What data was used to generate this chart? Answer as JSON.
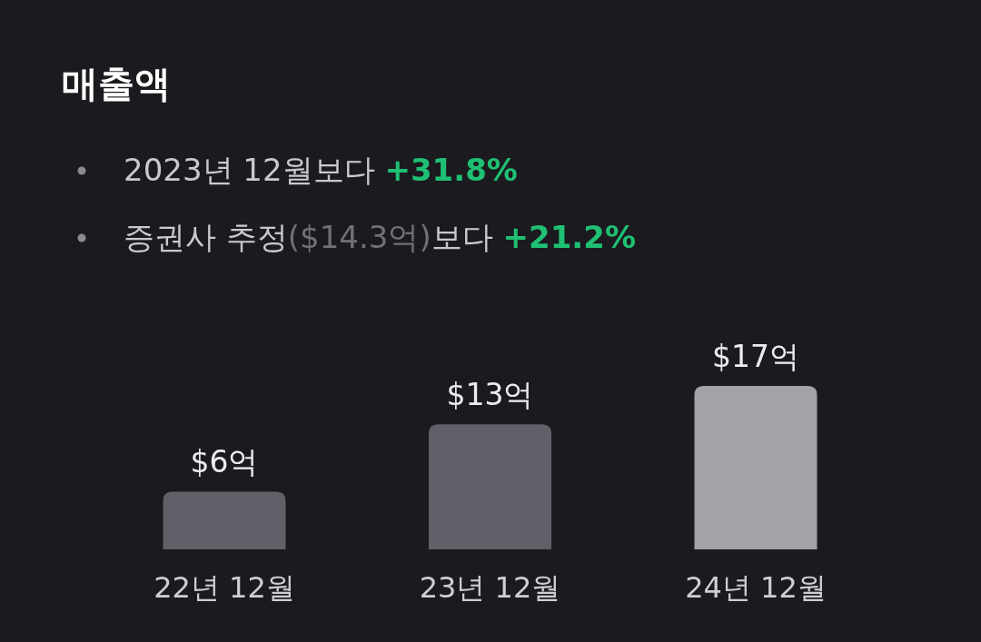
{
  "chart_data": {
    "type": "bar",
    "title": "매출액",
    "annotations": [
      "2023년 12월보다 +31.8%",
      "증권사 추정($14.3억)보다 +21.2%"
    ],
    "categories": [
      "22년 12월",
      "23년 12월",
      "24년 12월"
    ],
    "values": [
      6,
      13,
      17
    ],
    "colors": [
      "#606068",
      "#606068",
      "#a2a2a8"
    ],
    "value_labels": [
      "$6억",
      "$13억",
      "$17억"
    ]
  }
}
